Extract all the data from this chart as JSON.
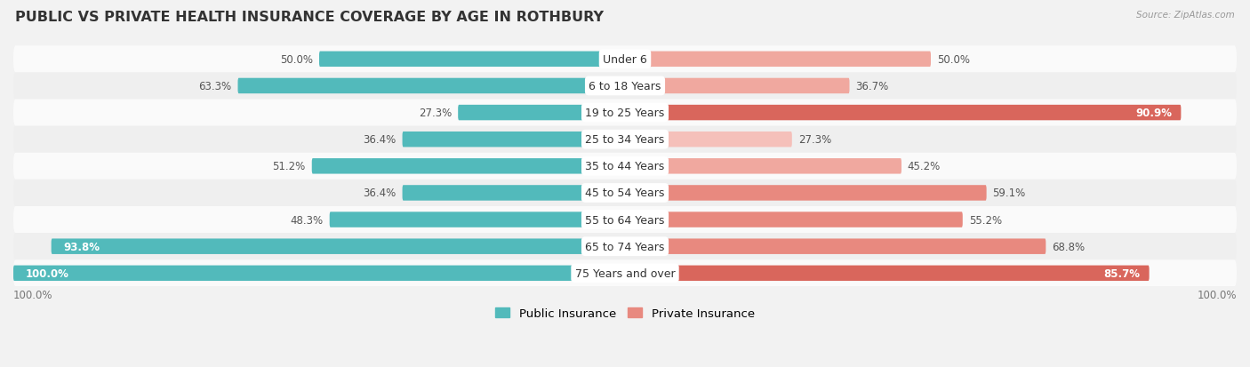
{
  "title": "PUBLIC VS PRIVATE HEALTH INSURANCE COVERAGE BY AGE IN ROTHBURY",
  "source": "Source: ZipAtlas.com",
  "categories": [
    "Under 6",
    "6 to 18 Years",
    "19 to 25 Years",
    "25 to 34 Years",
    "35 to 44 Years",
    "45 to 54 Years",
    "55 to 64 Years",
    "65 to 74 Years",
    "75 Years and over"
  ],
  "public": [
    50.0,
    63.3,
    27.3,
    36.4,
    51.2,
    36.4,
    48.3,
    93.8,
    100.0
  ],
  "private": [
    50.0,
    36.7,
    90.9,
    27.3,
    45.2,
    59.1,
    55.2,
    68.8,
    85.7
  ],
  "public_color": "#52babb",
  "private_colors": [
    "#f0a89f",
    "#f0a89f",
    "#d9665c",
    "#f5c0ba",
    "#f0a89f",
    "#e8897f",
    "#e8897f",
    "#e8897f",
    "#d9665c"
  ],
  "bg_color": "#f2f2f2",
  "row_colors": [
    "#fafafa",
    "#efefef"
  ],
  "max_val": 100.0,
  "title_fontsize": 11.5,
  "label_fontsize": 8.5,
  "category_fontsize": 9.0,
  "bar_height": 0.58
}
